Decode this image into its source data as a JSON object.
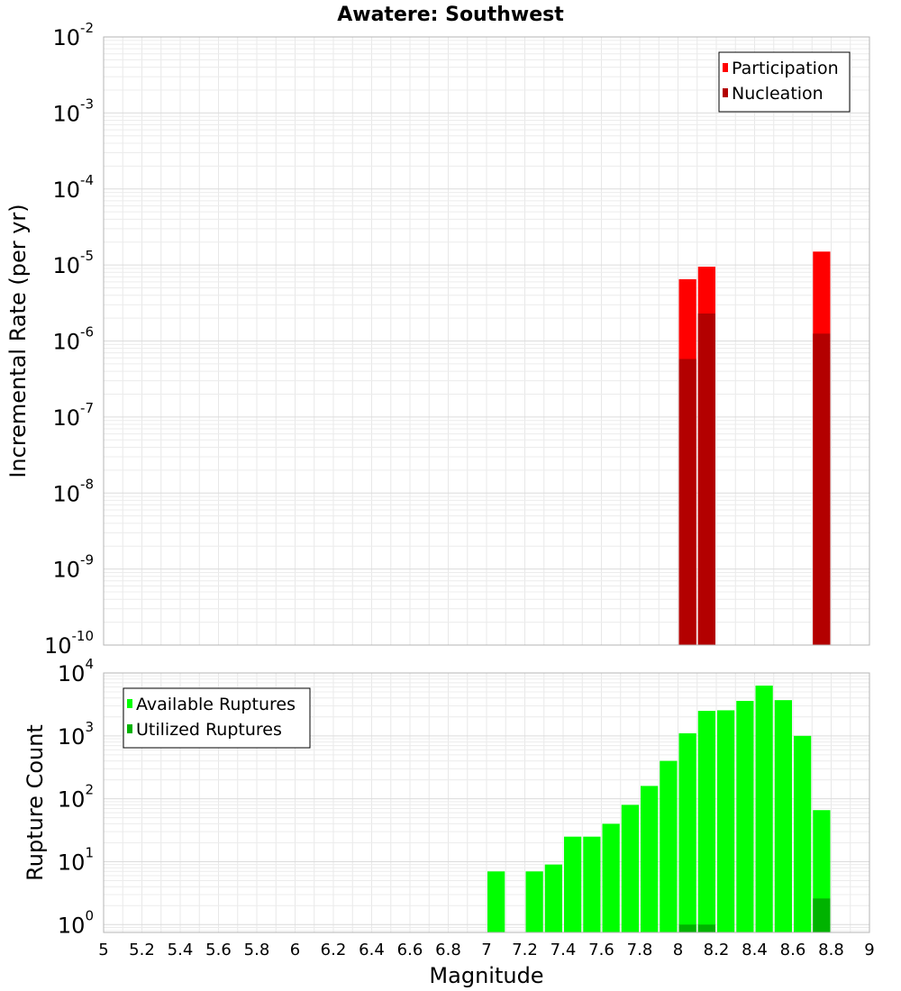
{
  "chart_data": {
    "type": "bar",
    "title": "Awatere: Southwest",
    "xlabel": "Magnitude",
    "xlim": [
      5,
      9
    ],
    "xticks": [
      5,
      5.2,
      5.4,
      5.6,
      5.8,
      6,
      6.2,
      6.4,
      6.6,
      6.8,
      7,
      7.2,
      7.4,
      7.6,
      7.8,
      8,
      8.2,
      8.4,
      8.6,
      8.8,
      9
    ],
    "xtick_labels": [
      "5",
      "5.2",
      "5.4",
      "5.6",
      "5.8",
      "6",
      "6.2",
      "6.4",
      "6.6",
      "6.8",
      "7",
      "7.2",
      "7.4",
      "7.6",
      "7.8",
      "8",
      "8.2",
      "8.4",
      "8.6",
      "8.8",
      "9"
    ],
    "bin_width": 0.1,
    "grid": true,
    "panels": [
      {
        "id": "rate",
        "ylabel": "Incremental Rate (per yr)",
        "yscale": "log",
        "ylim": [
          1e-10,
          0.01
        ],
        "ytick_exponents": [
          -10,
          -9,
          -8,
          -7,
          -6,
          -5,
          -4,
          -3,
          -2
        ],
        "legend_position": "top-right",
        "series": [
          {
            "name": "Participation",
            "color": "#ff0000",
            "x": [
              8.05,
              8.15,
              8.75
            ],
            "values": [
              6.5e-06,
              9.5e-06,
              1.5e-05
            ]
          },
          {
            "name": "Nucleation",
            "color": "#b30000",
            "x": [
              8.05,
              8.15,
              8.75
            ],
            "values": [
              5.8e-07,
              2.3e-06,
              1.25e-06
            ]
          }
        ]
      },
      {
        "id": "count",
        "ylabel": "Rupture Count",
        "yscale": "log",
        "ylim": [
          0.75,
          10000
        ],
        "ytick_exponents": [
          0,
          1,
          2,
          3,
          4
        ],
        "legend_position": "top-left",
        "series": [
          {
            "name": "Available Ruptures",
            "color": "#00ff00",
            "x": [
              7.05,
              7.25,
              7.35,
              7.45,
              7.55,
              7.65,
              7.75,
              7.85,
              7.95,
              8.05,
              8.15,
              8.25,
              8.35,
              8.45,
              8.55,
              8.65,
              8.75
            ],
            "values": [
              7,
              7,
              9,
              25,
              25,
              40,
              80,
              160,
              400,
              1100,
              2500,
              2550,
              3600,
              6300,
              3700,
              1000,
              66
            ]
          },
          {
            "name": "Utilized Ruptures",
            "color": "#00b300",
            "x": [
              8.05,
              8.15,
              8.75
            ],
            "values": [
              1,
              1,
              2.6
            ]
          }
        ]
      }
    ]
  }
}
